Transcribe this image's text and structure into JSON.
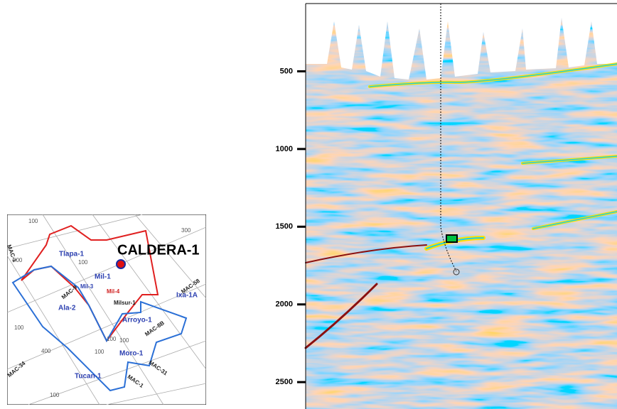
{
  "map": {
    "title": "CALDERA-1",
    "wells": [
      "Tlapa-1",
      "Mil-1",
      "Mil-3",
      "Mil-4",
      "Milsur-1",
      "Ala-2",
      "Arroyo-1",
      "Ixa-1A",
      "Moro-1",
      "Tucan-1"
    ],
    "lines": [
      "MAC-58",
      "MAC-8B",
      "MAC-31",
      "MAC-1",
      "MAC-34",
      "MAC-9",
      "MAC-1"
    ],
    "contours": [
      "100",
      "300",
      "500",
      "100",
      "400",
      "100",
      "100",
      "100",
      "100",
      "100"
    ]
  },
  "seismic": {
    "ylim": [
      64,
      2673
    ],
    "yticks": [
      500,
      1000,
      1500,
      2000,
      2500
    ]
  }
}
